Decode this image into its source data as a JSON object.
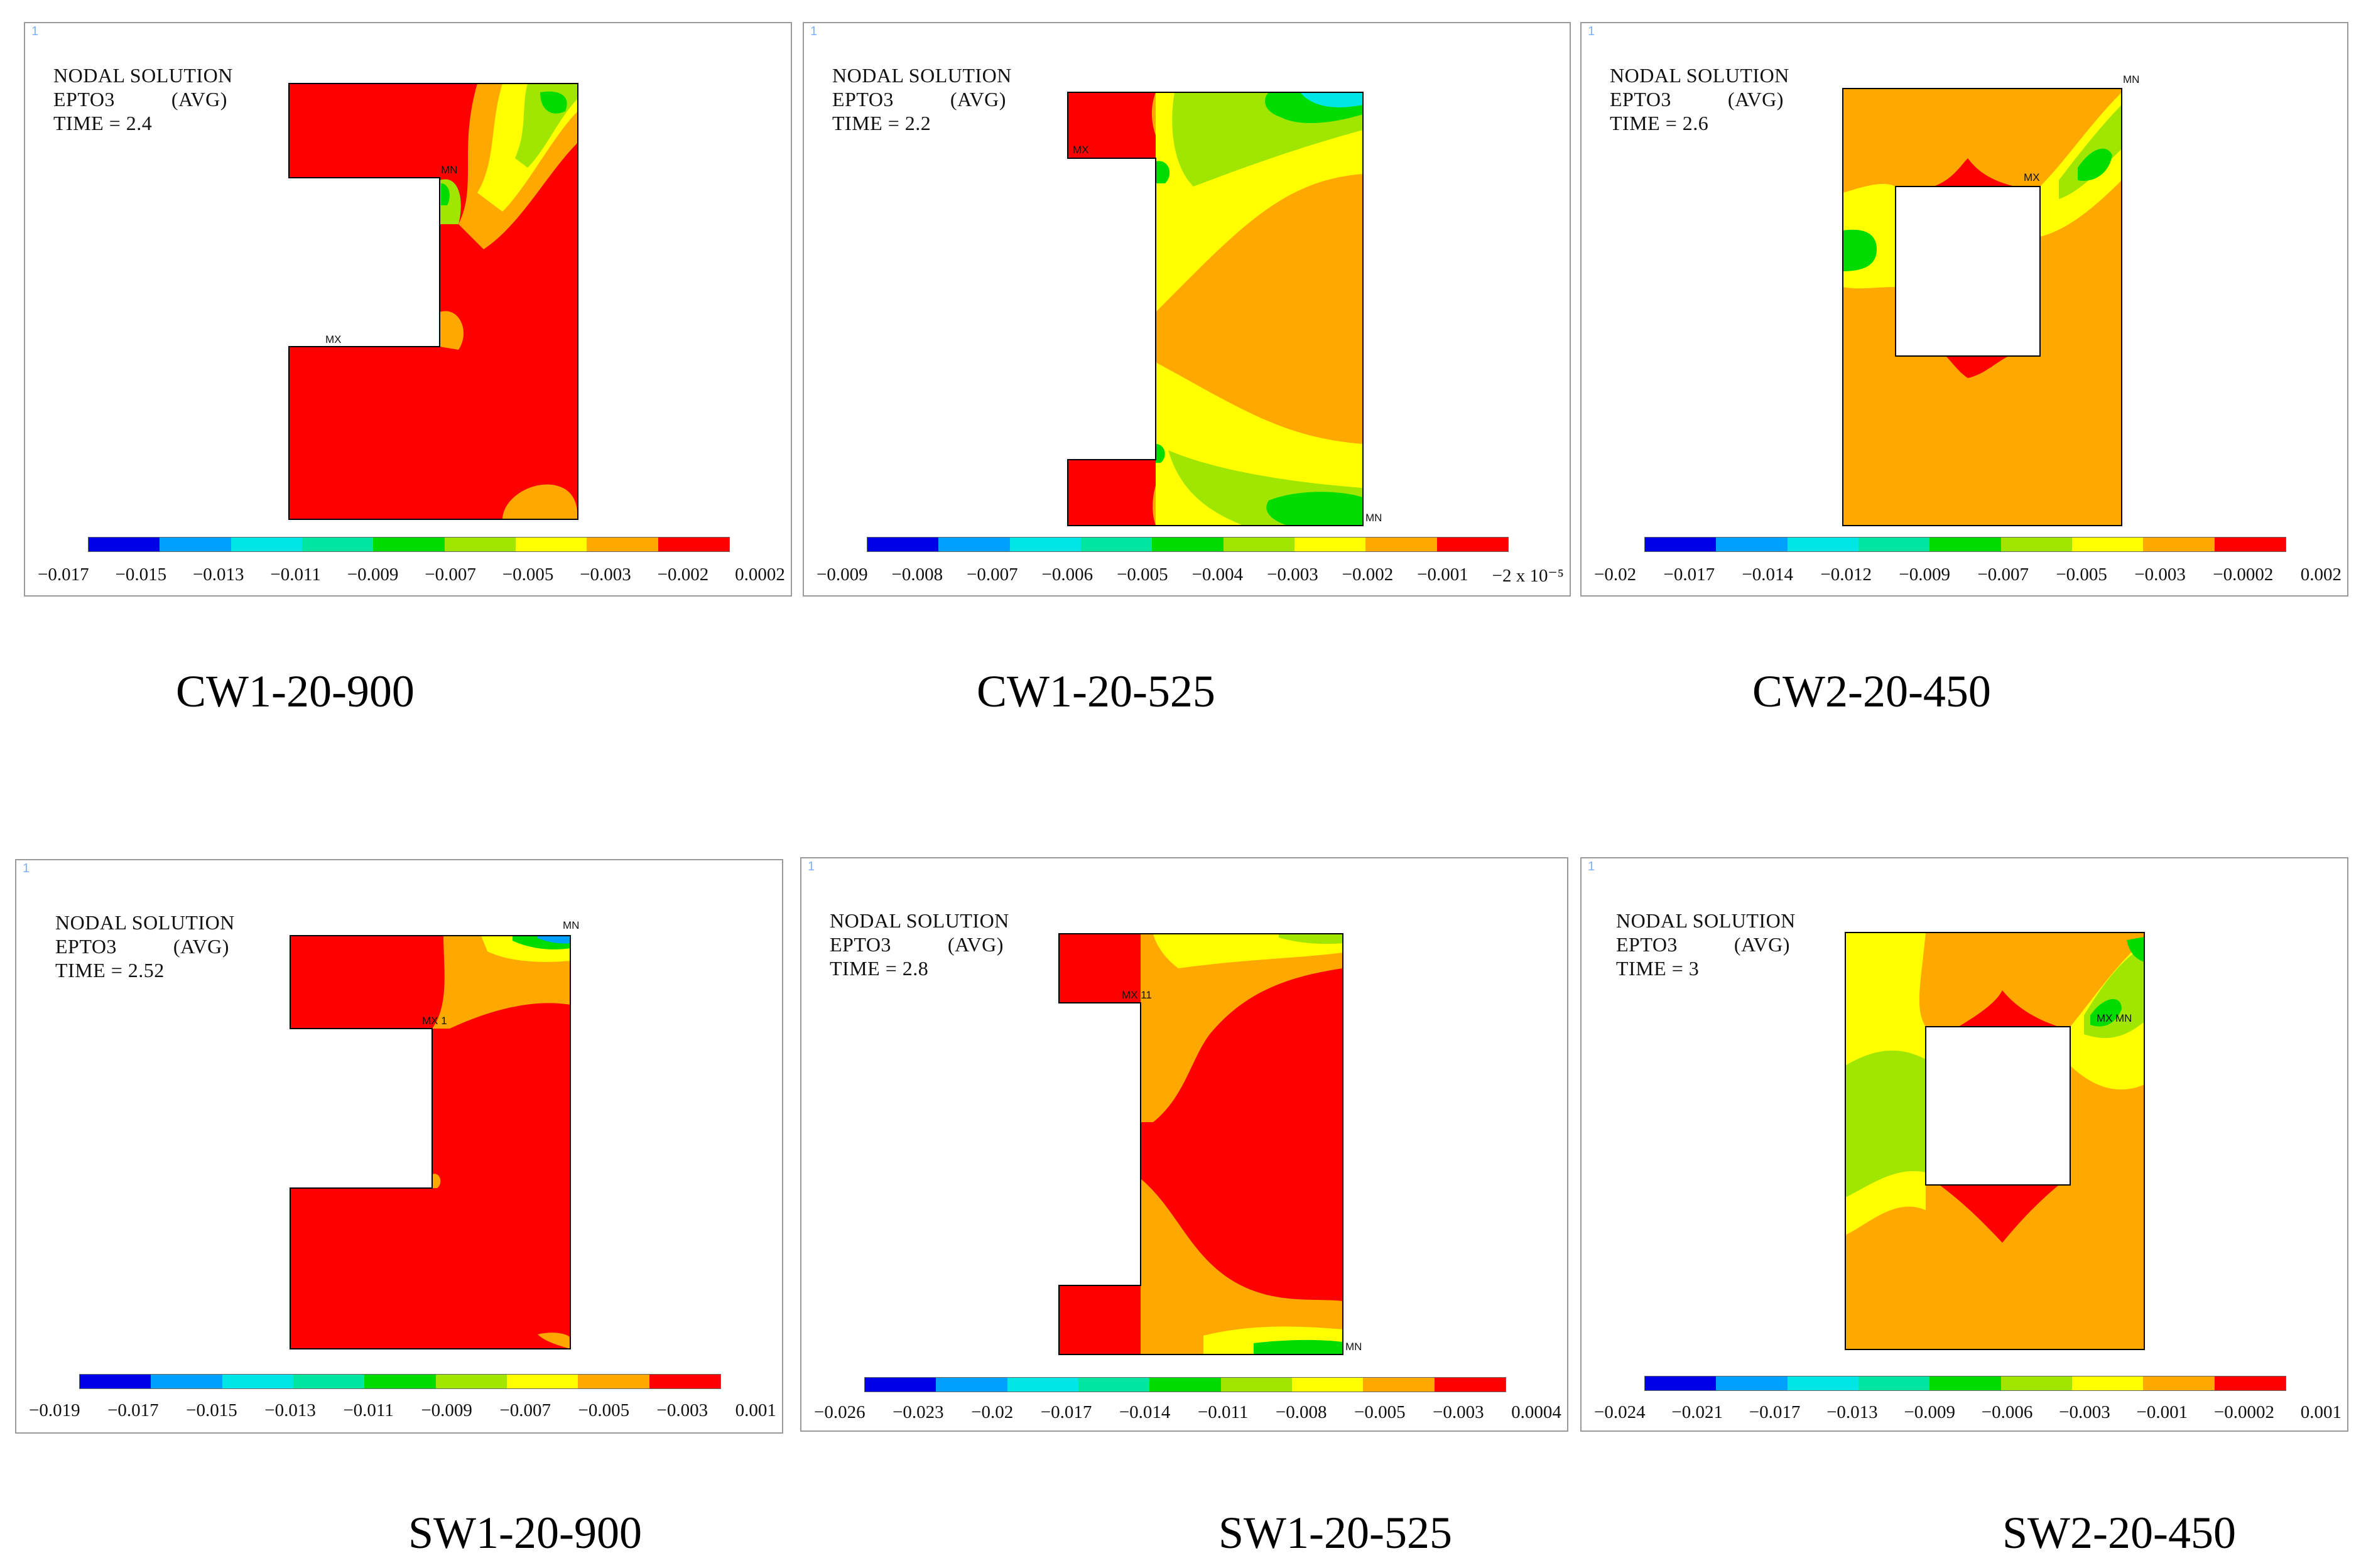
{
  "header": {
    "line1": "NODAL SOLUTION",
    "line2a": "EPTO3",
    "line2b": "(AVG)"
  },
  "scale_colors": [
    "#0000e6",
    "#00a0ff",
    "#00e6e6",
    "#00e6a0",
    "#00dc00",
    "#a0e600",
    "#ffff00",
    "#ffa800",
    "#ff0000"
  ],
  "panels": [
    {
      "caption": "CW1-20-900",
      "time": "TIME = 2.4",
      "ticks": [
        "−0.017",
        "−0.015",
        "−0.013",
        "−0.011",
        "−0.009",
        "−0.007",
        "−0.005",
        "−0.003",
        "−0.002",
        "0.0002"
      ],
      "mn": "MN",
      "mx": "MX"
    },
    {
      "caption": "CW1-20-525",
      "time": "TIME = 2.2",
      "ticks": [
        "−0.009",
        "−0.008",
        "−0.007",
        "−0.006",
        "−0.005",
        "−0.004",
        "−0.003",
        "−0.002",
        "−0.001",
        "−2 x 10⁻⁵"
      ],
      "mn": "MN",
      "mx": "MX"
    },
    {
      "caption": "CW2-20-450",
      "time": "TIME = 2.6",
      "ticks": [
        "−0.02",
        "−0.017",
        "−0.014",
        "−0.012",
        "−0.009",
        "−0.007",
        "−0.005",
        "−0.003",
        "−0.0002",
        "0.002"
      ],
      "mn": "MN",
      "mx": "MX"
    },
    {
      "caption": "SW1-20-900",
      "time": "TIME = 2.52",
      "ticks": [
        "−0.019",
        "−0.017",
        "−0.015",
        "−0.013",
        "−0.011",
        "−0.009",
        "−0.007",
        "−0.005",
        "−0.003",
        "0.001"
      ],
      "mn": "MN",
      "mx": "MX 1"
    },
    {
      "caption": "SW1-20-525",
      "time": "TIME = 2.8",
      "ticks": [
        "−0.026",
        "−0.023",
        "−0.02",
        "−0.017",
        "−0.014",
        "−0.011",
        "−0.008",
        "−0.005",
        "−0.003",
        "0.0004"
      ],
      "mn": "MN",
      "mx": "MX 11"
    },
    {
      "caption": "SW2-20-450",
      "time": "TIME = 3",
      "ticks": [
        "−0.024",
        "−0.021",
        "−0.017",
        "−0.013",
        "−0.009",
        "−0.006",
        "−0.003",
        "−0.001",
        "−0.0002",
        "0.001"
      ],
      "mn": "MN",
      "mx": "MX"
    }
  ]
}
